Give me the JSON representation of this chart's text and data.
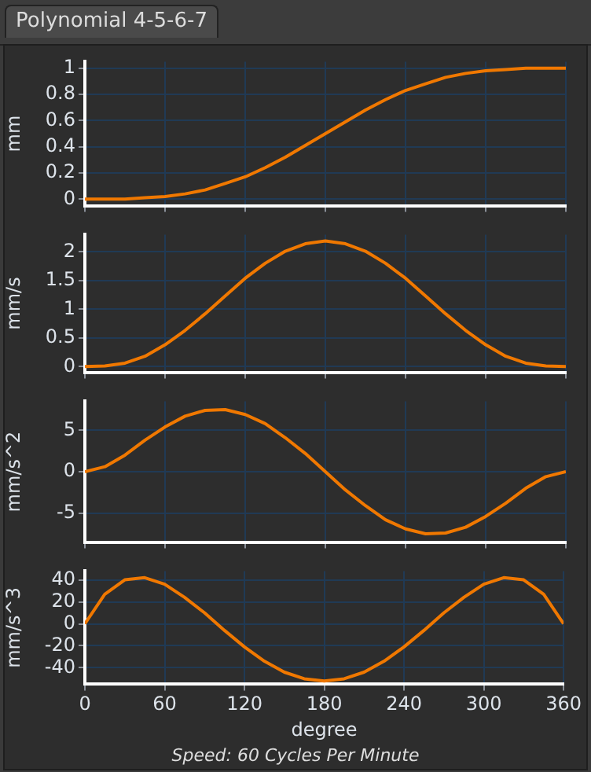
{
  "chart_data": [
    {
      "type": "line",
      "title": "Polynomial 4-5-6-7",
      "ylabel": "mm",
      "color": "#f07800",
      "x": [
        0,
        15,
        30,
        45,
        60,
        75,
        90,
        105,
        120,
        135,
        150,
        165,
        180,
        195,
        210,
        225,
        240,
        255,
        270,
        285,
        300,
        315,
        330,
        345,
        360
      ],
      "values": [
        0,
        0,
        0,
        0.01,
        0.02,
        0.04,
        0.07,
        0.12,
        0.17,
        0.24,
        0.32,
        0.41,
        0.5,
        0.59,
        0.68,
        0.76,
        0.83,
        0.88,
        0.93,
        0.96,
        0.98,
        0.99,
        1,
        1,
        1
      ],
      "xlim": [
        0,
        360
      ],
      "xticks": [
        0,
        60,
        120,
        180,
        240,
        300,
        360
      ],
      "ylim": [
        -0.05,
        1.05
      ],
      "yticks": [
        0,
        0.2,
        0.4,
        0.6,
        0.8,
        1
      ],
      "grid": true,
      "tick_labels": "y"
    },
    {
      "type": "line",
      "ylabel": "mm/s",
      "color": "#f07800",
      "x": [
        0,
        15,
        30,
        45,
        60,
        75,
        90,
        105,
        120,
        135,
        150,
        165,
        180,
        195,
        210,
        225,
        240,
        255,
        270,
        285,
        300,
        315,
        330,
        345,
        360
      ],
      "values": [
        0,
        0.01,
        0.06,
        0.18,
        0.38,
        0.63,
        0.92,
        1.23,
        1.54,
        1.8,
        2.01,
        2.14,
        2.19,
        2.14,
        2.01,
        1.8,
        1.54,
        1.23,
        0.92,
        0.63,
        0.38,
        0.18,
        0.06,
        0.01,
        0
      ],
      "xlim": [
        0,
        360
      ],
      "xticks": [
        0,
        60,
        120,
        180,
        240,
        300,
        360
      ],
      "ylim": [
        -0.1,
        2.3
      ],
      "yticks": [
        0,
        0.5,
        1,
        1.5,
        2
      ],
      "grid": true,
      "tick_labels": "y"
    },
    {
      "type": "line",
      "ylabel": "mm/s^2",
      "color": "#f07800",
      "x": [
        0,
        15,
        30,
        45,
        60,
        75,
        90,
        105,
        120,
        135,
        150,
        165,
        180,
        195,
        210,
        225,
        240,
        255,
        270,
        285,
        300,
        315,
        330,
        345,
        360
      ],
      "values": [
        0,
        0.6,
        2,
        3.8,
        5.4,
        6.7,
        7.4,
        7.5,
        6.9,
        5.8,
        4.1,
        2.2,
        0,
        -2.2,
        -4.1,
        -5.8,
        -6.9,
        -7.5,
        -7.4,
        -6.7,
        -5.4,
        -3.8,
        -2,
        -0.6,
        0
      ],
      "xlim": [
        0,
        360
      ],
      "xticks": [
        0,
        60,
        120,
        180,
        240,
        300,
        360
      ],
      "ylim": [
        -8.5,
        8.5
      ],
      "yticks": [
        -5,
        0,
        5
      ],
      "grid": true,
      "tick_labels": "y"
    },
    {
      "type": "line",
      "ylabel": "mm/s^3",
      "xlabel": "degree",
      "color": "#f07800",
      "x": [
        0,
        15,
        30,
        45,
        60,
        75,
        90,
        105,
        120,
        135,
        150,
        165,
        180,
        195,
        210,
        225,
        240,
        255,
        270,
        285,
        300,
        315,
        330,
        345,
        360
      ],
      "values": [
        0,
        27,
        40,
        42,
        36,
        24,
        10,
        -6,
        -21,
        -34,
        -44,
        -50,
        -52,
        -50,
        -44,
        -34,
        -21,
        -6,
        10,
        24,
        36,
        42,
        40,
        27,
        0
      ],
      "xlim": [
        0,
        360
      ],
      "xticks": [
        0,
        60,
        120,
        180,
        240,
        300,
        360
      ],
      "ylim": [
        -55,
        48
      ],
      "yticks": [
        -40,
        -20,
        0,
        20,
        40
      ],
      "grid": true,
      "annotations": [
        "Speed: 60 Cycles Per Minute"
      ]
    }
  ]
}
